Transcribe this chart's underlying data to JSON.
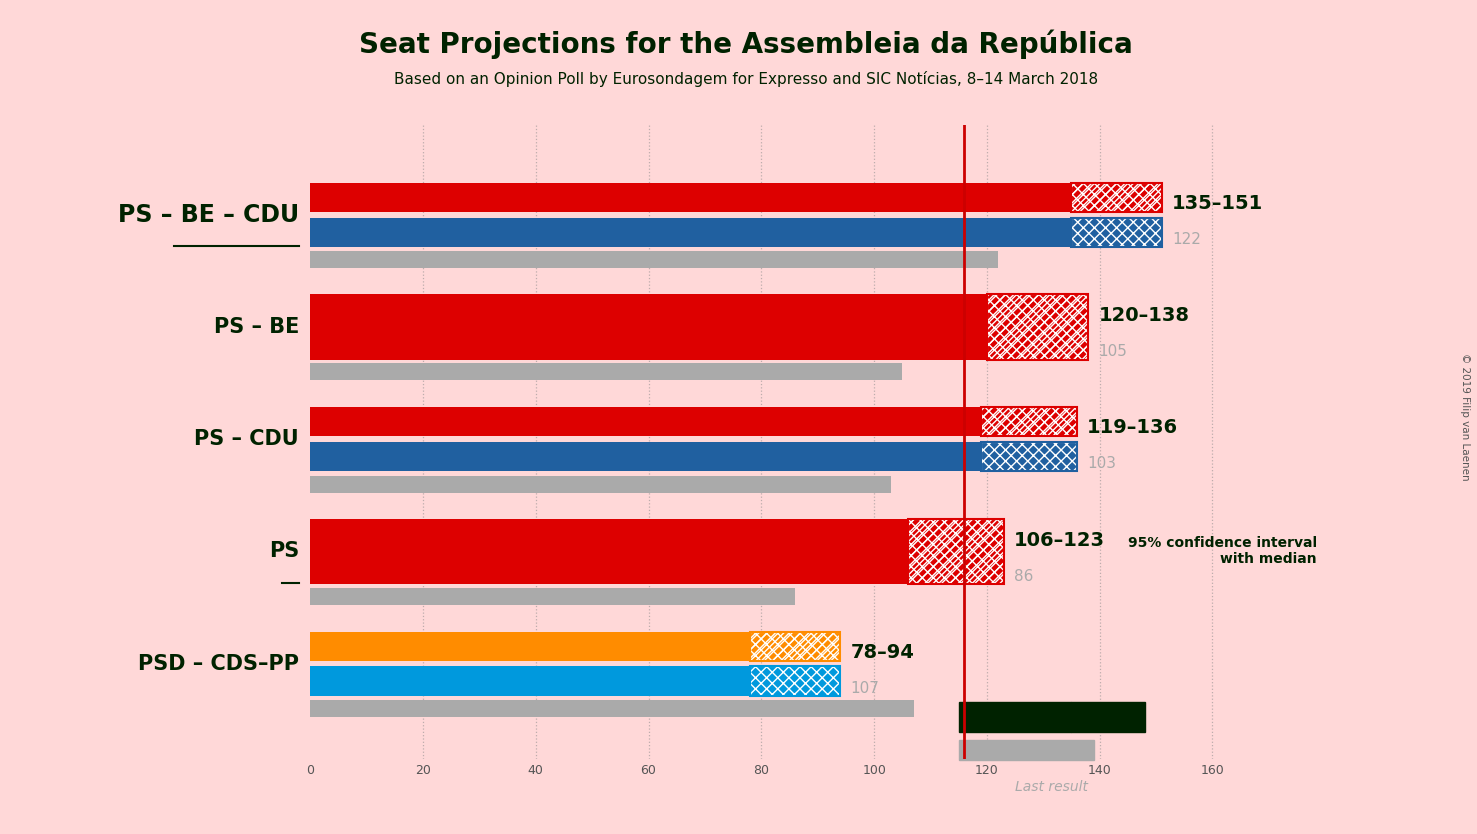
{
  "title": "Seat Projections for the Assembleia da República",
  "subtitle": "Based on an Opinion Poll by Eurosondagem for Expresso and SIC Notícias, 8–14 March 2018",
  "background_color": "#ffd8d8",
  "majority_line": 116,
  "copyright": "© 2019 Filip van Laenen",
  "coalitions": [
    {
      "label": "PS – BE – CDU",
      "underline": true,
      "ci_low": 135,
      "ci_high": 151,
      "last_result": 122,
      "top_color": "#dd0000",
      "bot_color": "#2060a0",
      "two_tone": true,
      "is_psd": false
    },
    {
      "label": "PS – BE",
      "underline": false,
      "ci_low": 120,
      "ci_high": 138,
      "last_result": 105,
      "top_color": "#dd0000",
      "bot_color": "#dd0000",
      "two_tone": false,
      "is_psd": false
    },
    {
      "label": "PS – CDU",
      "underline": false,
      "ci_low": 119,
      "ci_high": 136,
      "last_result": 103,
      "top_color": "#dd0000",
      "bot_color": "#2060a0",
      "two_tone": true,
      "is_psd": false
    },
    {
      "label": "PS",
      "underline": true,
      "ci_low": 106,
      "ci_high": 123,
      "last_result": 86,
      "top_color": "#dd0000",
      "bot_color": "#dd0000",
      "two_tone": false,
      "is_psd": false
    },
    {
      "label": "PSD – CDS–PP",
      "underline": false,
      "ci_low": 78,
      "ci_high": 94,
      "last_result": 107,
      "top_color": "#ff8c00",
      "bot_color": "#0099dd",
      "two_tone": true,
      "is_psd": true
    }
  ],
  "xlim_max": 165,
  "tick_positions": [
    0,
    20,
    40,
    60,
    80,
    100,
    120,
    140,
    160
  ],
  "dark_green": "#002200",
  "gray_color": "#aaaaaa",
  "majority_color": "#cc0000"
}
